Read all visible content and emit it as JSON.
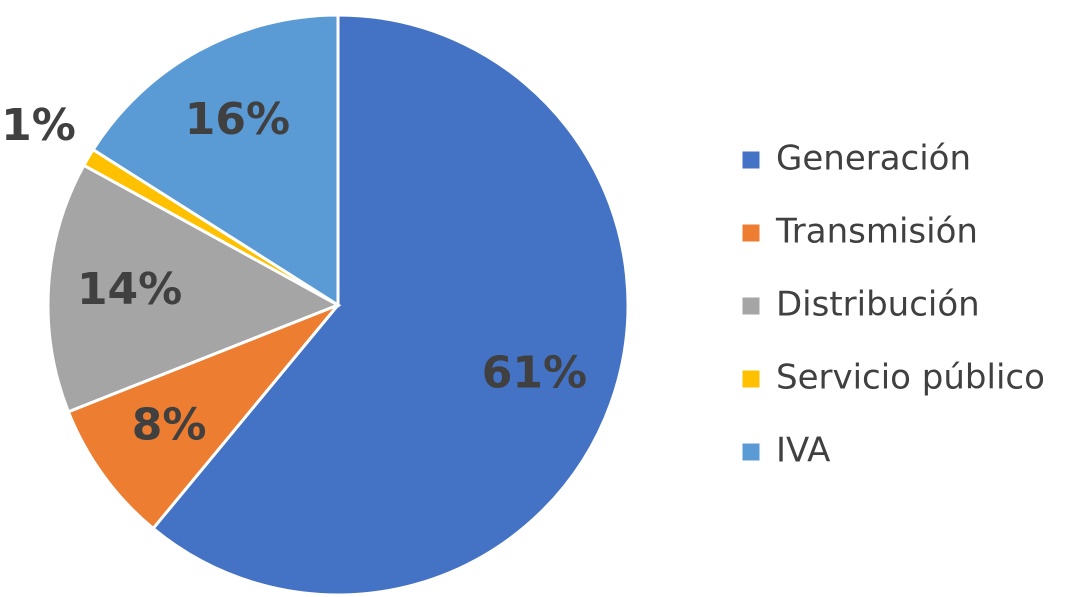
{
  "chart_data": {
    "type": "pie",
    "categories": [
      "Generación",
      "Transmisión",
      "Distribución",
      "Servicio público",
      "IVA"
    ],
    "values": [
      61,
      8,
      14,
      1,
      16
    ],
    "value_labels": [
      "61%",
      "8%",
      "14%",
      "1%",
      "16%"
    ],
    "colors": [
      "#4472c4",
      "#ed7d31",
      "#a5a5a5",
      "#ffc000",
      "#5b9bd5"
    ],
    "legend": "right"
  }
}
